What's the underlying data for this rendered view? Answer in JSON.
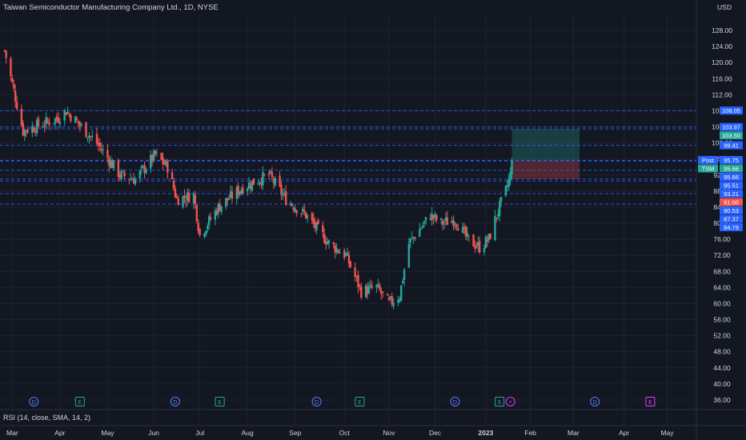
{
  "header": {
    "title": "Taiwan Semiconductor Manufacturing Company Ltd., 1D, NYSE",
    "currency": "USD"
  },
  "indicator": {
    "label": "RSI (14, close, SMA, 14, 2)"
  },
  "colors": {
    "background": "#131722",
    "up": "#26a69a",
    "down": "#ef5350",
    "level_line": "#2962ff",
    "grid": "#1e2230",
    "axis_text": "#d1d4dc",
    "profit_zone": "rgba(38,166,154,0.28)",
    "loss_zone": "rgba(239,83,80,0.28)"
  },
  "chart_data": {
    "type": "candlestick",
    "title": "Taiwan Semiconductor Manufacturing Company Ltd., 1D, NYSE",
    "y_axis": {
      "ylim": [
        34,
        132
      ],
      "ticks": [
        "36.00",
        "40.00",
        "44.00",
        "48.00",
        "52.00",
        "56.00",
        "60.00",
        "64.00",
        "68.00",
        "72.00",
        "76.00",
        "80.00",
        "84.00",
        "88.00",
        "92.00",
        "96.00",
        "100.00",
        "104.00",
        "108.00",
        "112.00",
        "116.00",
        "120.00",
        "124.00",
        "128.00"
      ]
    },
    "x_axis": {
      "ticks": [
        "Mar",
        "Apr",
        "May",
        "Jun",
        "Jul",
        "Aug",
        "Sep",
        "Oct",
        "Nov",
        "Dec",
        "2023",
        "Feb",
        "Mar",
        "Apr",
        "May"
      ]
    },
    "grid": true,
    "price_series_approx": [
      {
        "date": "2022-02-24",
        "close": 123
      },
      {
        "date": "2022-03-08",
        "close": 103
      },
      {
        "date": "2022-03-30",
        "close": 106
      },
      {
        "date": "2022-04-05",
        "close": 108
      },
      {
        "date": "2022-04-25",
        "close": 100
      },
      {
        "date": "2022-05-10",
        "close": 92
      },
      {
        "date": "2022-05-20",
        "close": 91
      },
      {
        "date": "2022-06-02",
        "close": 97
      },
      {
        "date": "2022-06-10",
        "close": 94
      },
      {
        "date": "2022-06-16",
        "close": 86
      },
      {
        "date": "2022-06-27",
        "close": 87
      },
      {
        "date": "2022-07-01",
        "close": 77
      },
      {
        "date": "2022-07-13",
        "close": 84
      },
      {
        "date": "2022-07-29",
        "close": 89
      },
      {
        "date": "2022-08-15",
        "close": 92
      },
      {
        "date": "2022-08-26",
        "close": 86
      },
      {
        "date": "2022-09-08",
        "close": 82
      },
      {
        "date": "2022-09-23",
        "close": 75
      },
      {
        "date": "2022-10-04",
        "close": 72
      },
      {
        "date": "2022-10-14",
        "close": 63
      },
      {
        "date": "2022-10-24",
        "close": 64
      },
      {
        "date": "2022-11-01",
        "close": 60
      },
      {
        "date": "2022-11-08",
        "close": 62
      },
      {
        "date": "2022-11-14",
        "close": 75
      },
      {
        "date": "2022-11-28",
        "close": 82
      },
      {
        "date": "2022-12-05",
        "close": 80
      },
      {
        "date": "2022-12-14",
        "close": 81
      },
      {
        "date": "2022-12-22",
        "close": 76
      },
      {
        "date": "2022-12-30",
        "close": 74
      },
      {
        "date": "2023-01-05",
        "close": 76
      },
      {
        "date": "2023-01-10",
        "close": 82
      },
      {
        "date": "2023-01-16",
        "close": 88
      },
      {
        "date": "2023-01-19",
        "close": 92
      },
      {
        "date": "2023-01-20",
        "close": 95.66
      }
    ],
    "levels": [
      {
        "label": "108.05",
        "value": 108.05,
        "color": "#2962ff"
      },
      {
        "label": "103.97",
        "value": 103.97,
        "color": "#2962ff"
      },
      {
        "label": "103.50",
        "value": 103.5,
        "color": "#26a69a"
      },
      {
        "label": "99.41",
        "value": 99.41,
        "color": "#2962ff"
      },
      {
        "label": "Post 95.75",
        "value": 95.75,
        "color": "#2962ff"
      },
      {
        "label": "TSM 95.66",
        "value": 95.66,
        "color": "#26a69a"
      },
      {
        "label": "95.66",
        "value": 95.66,
        "color": "#2962ff"
      },
      {
        "label": "95.51",
        "value": 95.51,
        "color": "#2962ff"
      },
      {
        "label": "93.21",
        "value": 93.21,
        "color": "#2962ff"
      },
      {
        "label": "91.00",
        "value": 91.0,
        "color": "#ef5350"
      },
      {
        "label": "90.53",
        "value": 90.53,
        "color": "#2962ff"
      },
      {
        "label": "87.37",
        "value": 87.37,
        "color": "#2962ff"
      },
      {
        "label": "84.79",
        "value": 84.79,
        "color": "#2962ff"
      }
    ],
    "position": {
      "entry": 95.66,
      "target": 103.5,
      "stop": 91.0,
      "start": "2023-01-20",
      "end": "2023-03-05"
    },
    "events": [
      {
        "type": "D",
        "date": "2022-03-15"
      },
      {
        "type": "E",
        "date": "2022-04-14"
      },
      {
        "type": "D",
        "date": "2022-06-15"
      },
      {
        "type": "E",
        "date": "2022-07-14"
      },
      {
        "type": "D",
        "date": "2022-09-15"
      },
      {
        "type": "E",
        "date": "2022-10-13"
      },
      {
        "type": "D",
        "date": "2022-12-14"
      },
      {
        "type": "E",
        "date": "2023-01-12"
      },
      {
        "type": "⚡",
        "date": "2023-01-19"
      },
      {
        "type": "D",
        "date": "2023-03-15"
      },
      {
        "type": "E",
        "date": "2023-04-20"
      }
    ]
  }
}
